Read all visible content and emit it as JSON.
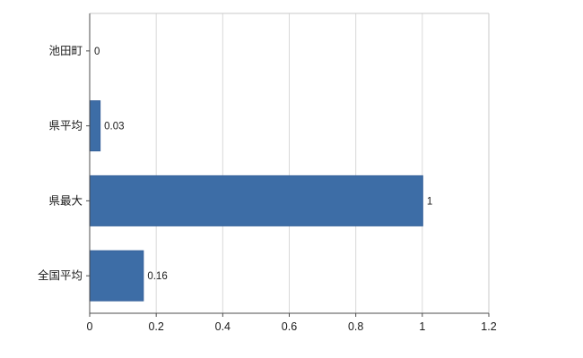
{
  "chart_data": {
    "type": "bar",
    "orientation": "horizontal",
    "title": "",
    "categories": [
      "池田町",
      "県平均",
      "県最大",
      "全国平均"
    ],
    "values": [
      0,
      0.03,
      1,
      0.16
    ],
    "value_labels": [
      "0",
      "0.03",
      "1",
      "0.16"
    ],
    "x_ticks": [
      0,
      0.2,
      0.4,
      0.6,
      0.8,
      1,
      1.2
    ],
    "x_tick_labels": [
      "0",
      "0.2",
      "0.4",
      "0.6",
      "0.8",
      "1",
      "1.2"
    ],
    "xlim": [
      0,
      1.2
    ],
    "xlabel": "",
    "ylabel": "",
    "grid": true,
    "legend_position": "none",
    "colors": {
      "bar_fill": "#3d6da6",
      "bar_stroke": "#35619a",
      "grid_line": "#d9d9d9",
      "plot_border": "#c9c9c9",
      "axis_line": "#4d4d4d",
      "tick_text": "#1a1a1a",
      "value_text": "#1a1a1a",
      "background": "#ffffff"
    }
  }
}
